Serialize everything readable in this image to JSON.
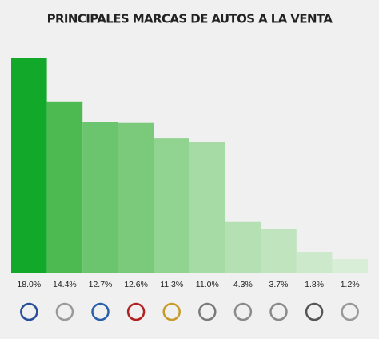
{
  "chart_data": {
    "type": "bar",
    "title": "PRINCIPALES MARCAS DE AUTOS A LA  VENTA",
    "categories": [
      null,
      null,
      null,
      null,
      null,
      null,
      null,
      null,
      null,
      null
    ],
    "values": [
      18.0,
      14.4,
      12.7,
      12.6,
      11.3,
      11.0,
      4.3,
      3.7,
      1.8,
      1.2
    ],
    "value_labels": [
      "18.0%",
      "14.4%",
      "12.7%",
      "12.6%",
      "11.3%",
      "11.0%",
      "4.3%",
      "3.7%",
      "1.8%",
      "1.2%"
    ],
    "colors": [
      "#12a82a",
      "#4cba50",
      "#6bc46e",
      "#7bca7b",
      "#91d390",
      "#a6dba5",
      "#b5e0b4",
      "#bfe4be",
      "#cce9cb",
      "#d8eed7"
    ]
  }
}
